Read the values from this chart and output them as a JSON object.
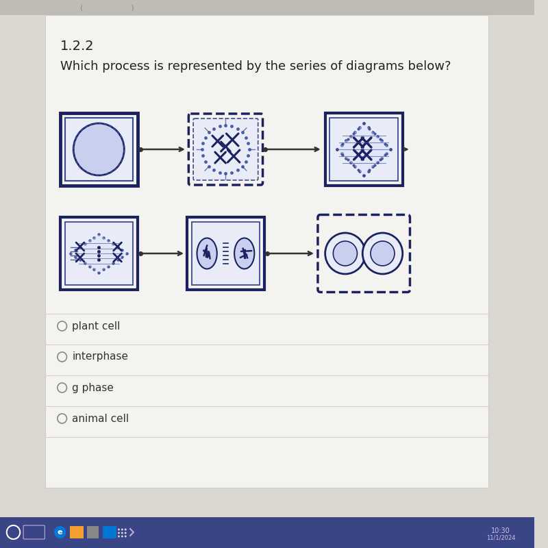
{
  "bg_outer": "#c8c4bc",
  "bg_inner": "#dcd8d0",
  "content_bg": "#f0ede8",
  "tab_bar_color": "#c0bcb4",
  "taskbar_color": "#3a4080",
  "question_number": "1.2.2",
  "question_text": "Which process is represented by the series of diagrams below?",
  "options": [
    "plant cell",
    "interphase",
    "g phase",
    "animal cell"
  ],
  "title_fontsize": 14,
  "question_fontsize": 13,
  "option_fontsize": 11,
  "cell_color_dark": "#1a2260",
  "cell_color_mid": "#3a4898",
  "cell_color_light": "#8090cc",
  "cell_bg": "#e8ecf8",
  "nucleus_bg": "#c8d0f0"
}
